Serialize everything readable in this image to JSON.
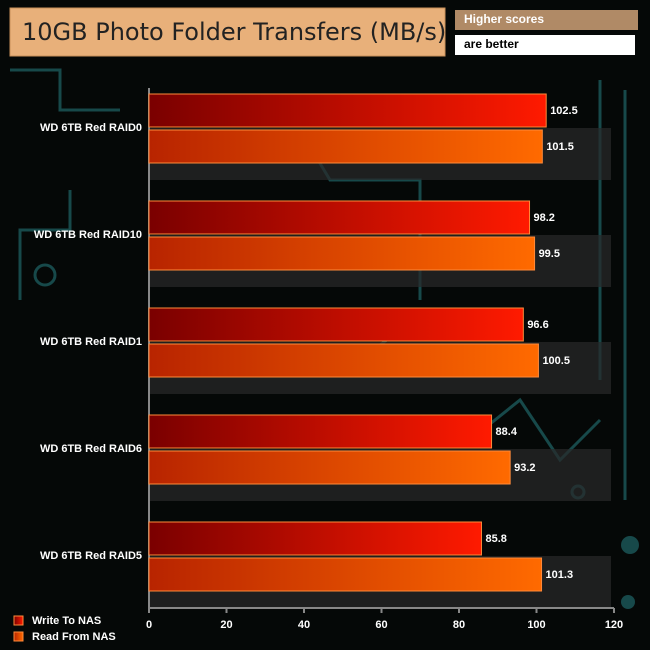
{
  "chart_data": {
    "type": "hbar",
    "title": "10GB Photo Folder Transfers (MB/s)",
    "note": [
      "Higher scores",
      "are better"
    ],
    "categories": [
      "WD 6TB Red RAID0",
      "WD 6TB Red RAID10",
      "WD 6TB Red RAID1",
      "WD 6TB Red RAID6",
      "WD 6TB Red RAID5"
    ],
    "series": [
      {
        "name": "Write To NAS",
        "color": "#ff1a00",
        "values": [
          102.5,
          98.2,
          96.6,
          88.4,
          85.8
        ]
      },
      {
        "name": "Read From NAS",
        "color": "#ff6a00",
        "values": [
          101.5,
          99.5,
          100.5,
          93.2,
          101.3
        ]
      }
    ],
    "xlim": [
      0,
      120
    ],
    "xticks": [
      0,
      20,
      40,
      60,
      80,
      100,
      120
    ],
    "legend": "bottom-left"
  }
}
